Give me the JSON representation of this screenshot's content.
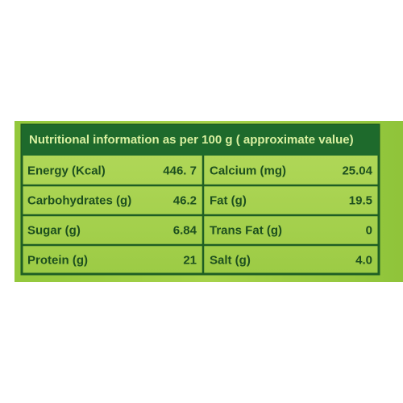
{
  "header": {
    "title": "Nutritional information as per 100 g ( approximate value)"
  },
  "table": {
    "rows": [
      [
        "Energy (Kcal)",
        "446. 7",
        "Calcium (mg)",
        "25.04"
      ],
      [
        "Carbohydrates (g)",
        "46.2",
        "Fat (g)",
        "19.5"
      ],
      [
        "Sugar (g)",
        "6.84",
        "Trans Fat (g)",
        "0"
      ],
      [
        "Protein (g)",
        "21",
        "Salt (g)",
        "4.0"
      ]
    ]
  }
}
